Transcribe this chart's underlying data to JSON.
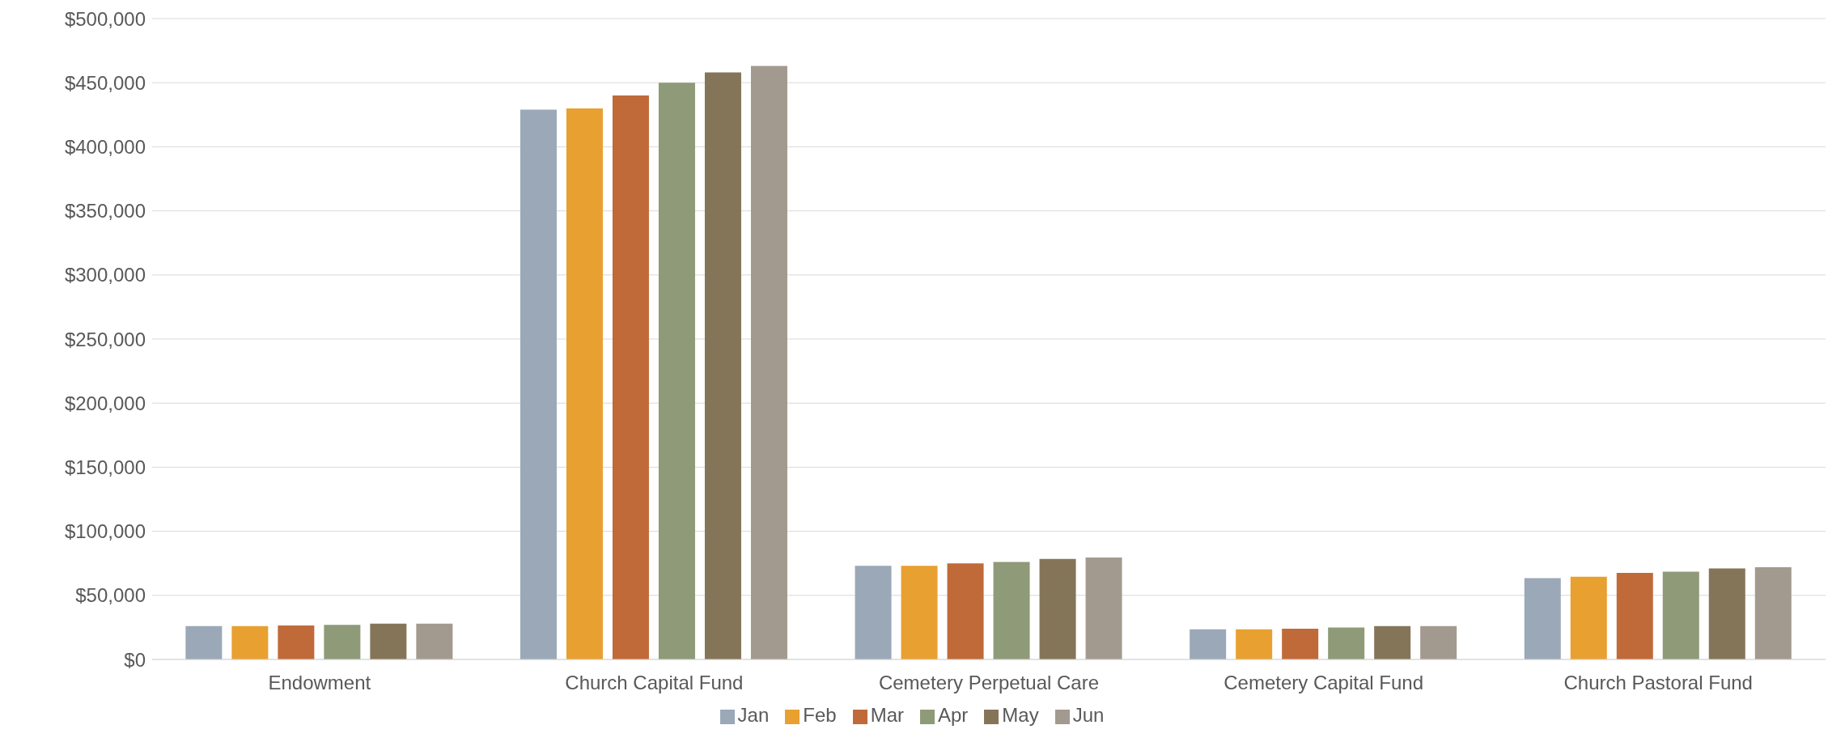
{
  "chart_data": {
    "type": "bar",
    "categories": [
      "Endowment",
      "Church Capital Fund",
      "Cemetery Perpetual Care",
      "Cemetery Capital Fund",
      "Church Pastoral Fund"
    ],
    "series": [
      {
        "name": "Jan",
        "color": "#9aa8b8",
        "values": [
          26000,
          429000,
          73000,
          23500,
          63500
        ]
      },
      {
        "name": "Feb",
        "color": "#e8a030",
        "values": [
          26000,
          430000,
          73000,
          23500,
          64500
        ]
      },
      {
        "name": "Mar",
        "color": "#c06a3a",
        "values": [
          26500,
          440000,
          75000,
          24000,
          67500
        ]
      },
      {
        "name": "Apr",
        "color": "#8f9a78",
        "values": [
          27000,
          450000,
          76000,
          25000,
          68500
        ]
      },
      {
        "name": "May",
        "color": "#857558",
        "values": [
          28000,
          458000,
          78500,
          26000,
          71000
        ]
      },
      {
        "name": "Jun",
        "color": "#a29a8e",
        "values": [
          28000,
          463000,
          79500,
          26000,
          72000
        ]
      }
    ],
    "ylim": [
      0,
      500000
    ],
    "yticks": [
      {
        "value": 0,
        "label": "$0"
      },
      {
        "value": 50000,
        "label": "$50,000"
      },
      {
        "value": 100000,
        "label": "$100,000"
      },
      {
        "value": 150000,
        "label": "$150,000"
      },
      {
        "value": 200000,
        "label": "$200,000"
      },
      {
        "value": 250000,
        "label": "$250,000"
      },
      {
        "value": 300000,
        "label": "$300,000"
      },
      {
        "value": 350000,
        "label": "$350,000"
      },
      {
        "value": 400000,
        "label": "$400,000"
      },
      {
        "value": 450000,
        "label": "$450,000"
      },
      {
        "value": 500000,
        "label": "$500,000"
      }
    ],
    "grid": "y",
    "legend": "bottom"
  }
}
